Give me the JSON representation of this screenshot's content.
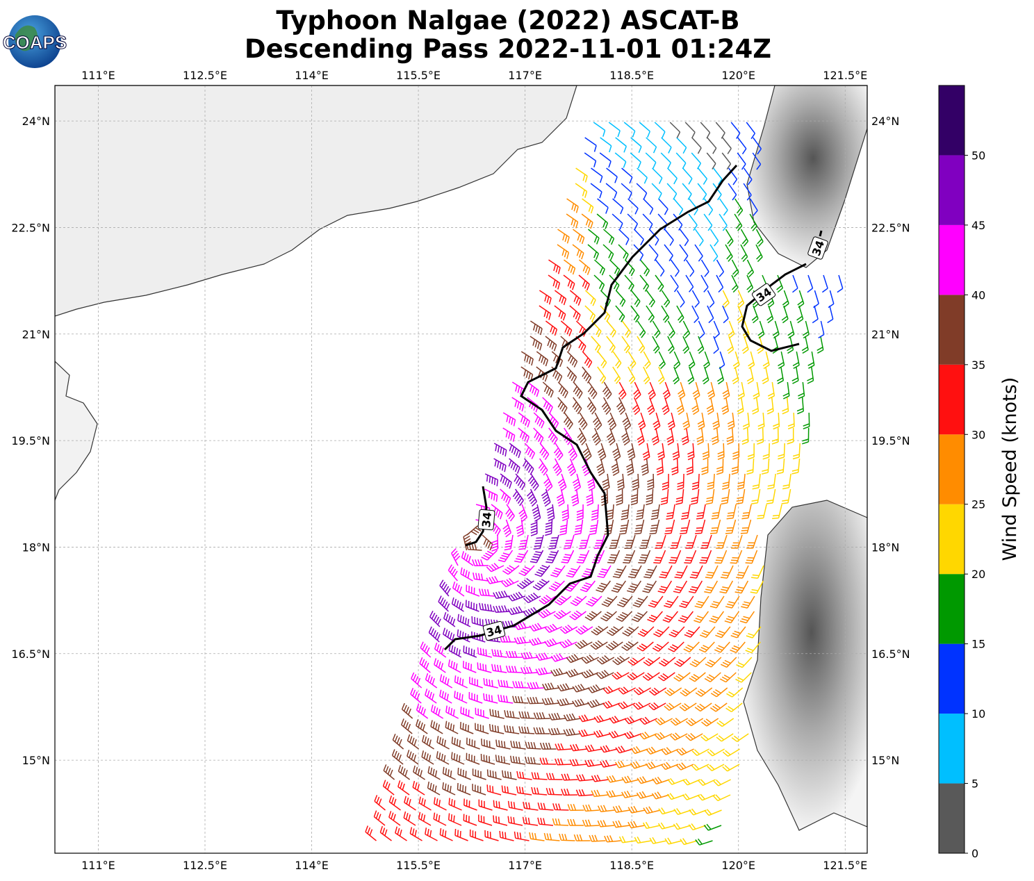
{
  "title": [
    "Typhoon Nalgae (2022) ASCAT-B",
    "Descending Pass 2022-11-01 01:24Z"
  ],
  "logo": "COAPS",
  "map": {
    "xlim": [
      110.39,
      121.81
    ],
    "ylim": [
      13.69,
      24.5
    ],
    "xticks": [
      {
        "value": 111,
        "label": "111°E"
      },
      {
        "value": 112.5,
        "label": "112.5°E"
      },
      {
        "value": 114,
        "label": "114°E"
      },
      {
        "value": 115.5,
        "label": "115.5°E"
      },
      {
        "value": 117,
        "label": "117°E"
      },
      {
        "value": 118.5,
        "label": "118.5°E"
      },
      {
        "value": 120,
        "label": "120°E"
      },
      {
        "value": 121.5,
        "label": "121.5°E"
      }
    ],
    "yticks": [
      {
        "value": 15,
        "label": "15°N"
      },
      {
        "value": 16.5,
        "label": "16.5°N"
      },
      {
        "value": 18,
        "label": "18°N"
      },
      {
        "value": 19.5,
        "label": "19.5°N"
      },
      {
        "value": 21,
        "label": "21°N"
      },
      {
        "value": 22.5,
        "label": "22.5°N"
      },
      {
        "value": 24,
        "label": "24°N"
      }
    ],
    "grid": true,
    "contour_labels": [
      "34",
      "34",
      "34",
      "34"
    ]
  },
  "colorbar": {
    "label": "Wind Speed (knots)",
    "lim": [
      0,
      55
    ],
    "ticks": [
      0,
      5,
      10,
      15,
      20,
      25,
      30,
      35,
      40,
      45,
      50
    ],
    "colors": [
      "#595959",
      "#00bfff",
      "#0033ff",
      "#009900",
      "#ffd700",
      "#ff8c00",
      "#ff1010",
      "#803c28",
      "#ff00ff",
      "#8000c0",
      "#330066"
    ]
  }
}
